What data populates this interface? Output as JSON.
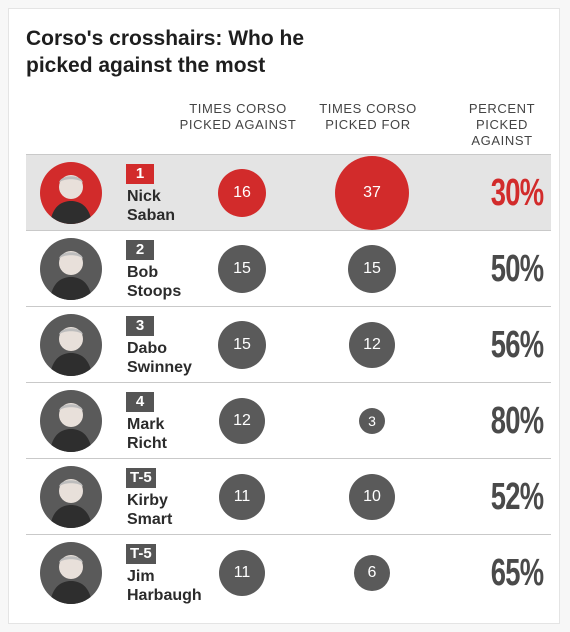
{
  "title": "Corso's crosshairs: Who he picked against the most",
  "columns": {
    "against": "TIMES CORSO PICKED AGAINST",
    "for": "TIMES CORSO PICKED FOR",
    "pct": "PERCENT PICKED AGAINST"
  },
  "colors": {
    "highlight": "#d22b2b",
    "neutral": "#5a5a5a",
    "highlight_row_bg": "#e4e4e4"
  },
  "chart_data": {
    "type": "table",
    "title": "Corso's crosshairs: Who he picked against the most",
    "columns": [
      "TIMES CORSO PICKED AGAINST",
      "TIMES CORSO PICKED FOR",
      "PERCENT PICKED AGAINST"
    ],
    "rows": [
      {
        "rank": "1",
        "first": "Nick",
        "last": "Saban",
        "against": 16,
        "for": 37,
        "pct": "30%"
      },
      {
        "rank": "2",
        "first": "Bob",
        "last": "Stoops",
        "against": 15,
        "for": 15,
        "pct": "50%"
      },
      {
        "rank": "3",
        "first": "Dabo",
        "last": "Swinney",
        "against": 15,
        "for": 12,
        "pct": "56%"
      },
      {
        "rank": "4",
        "first": "Mark",
        "last": "Richt",
        "against": 12,
        "for": 3,
        "pct": "80%"
      },
      {
        "rank": "T-5",
        "first": "Kirby",
        "last": "Smart",
        "against": 11,
        "for": 10,
        "pct": "52%"
      },
      {
        "rank": "T-5",
        "first": "Jim",
        "last": "Harbaugh",
        "against": 11,
        "for": 6,
        "pct": "65%"
      }
    ]
  }
}
